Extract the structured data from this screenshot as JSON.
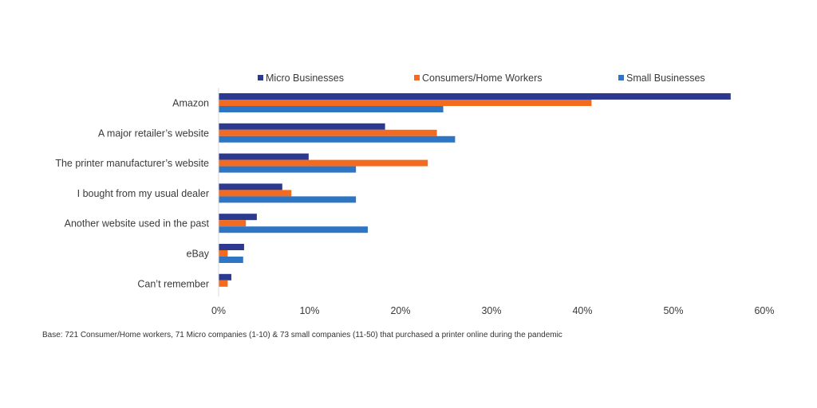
{
  "chart_data": {
    "type": "bar",
    "orientation": "horizontal",
    "categories": [
      "Amazon",
      "A major retailer’s website",
      "The printer manufacturer’s website",
      "I bought from my usual dealer",
      "Another website used in the past",
      "eBay",
      "Can’t remember"
    ],
    "series": [
      {
        "name": "Micro Businesses",
        "color": "#2B3990",
        "values": [
          56.3,
          18.3,
          9.9,
          7.0,
          4.2,
          2.8,
          1.4
        ]
      },
      {
        "name": "Consumers/Home Workers",
        "color": "#F26B21",
        "values": [
          41.0,
          24.0,
          23.0,
          8.0,
          3.0,
          1.0,
          1.0
        ]
      },
      {
        "name": "Small Businesses",
        "color": "#2E75C3",
        "values": [
          24.7,
          26.0,
          15.1,
          15.1,
          16.4,
          2.7,
          null
        ]
      }
    ],
    "xlim": [
      0,
      60
    ],
    "x_ticks": [
      0,
      10,
      20,
      30,
      40,
      50,
      60
    ],
    "x_tick_labels": [
      "0%",
      "10%",
      "20%",
      "30%",
      "40%",
      "50%",
      "60%"
    ],
    "grid": false,
    "legend_position": "top"
  },
  "footnote": "Base: 721 Consumer/Home workers, 71 Micro companies (1-10) & 73 small companies (11-50) that purchased a printer online during the pandemic"
}
